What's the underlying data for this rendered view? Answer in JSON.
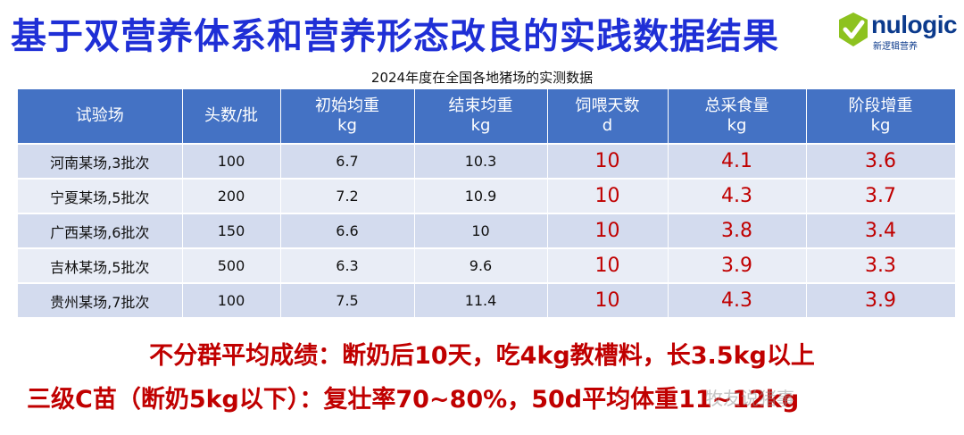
{
  "title": "基于双营养体系和营养形态改良的实践数据结果",
  "logo": {
    "word": "nulogic",
    "sub": "新逻辑营养",
    "mark_colors": [
      "#8dc21f",
      "#1f7a3a"
    ]
  },
  "subtitle": "2024年度在全国各地猪场的实测数据",
  "table": {
    "headers": [
      {
        "line1": "试验场",
        "line2": ""
      },
      {
        "line1": "头数/批",
        "line2": ""
      },
      {
        "line1": "初始均重",
        "line2": "kg"
      },
      {
        "line1": "结束均重",
        "line2": "kg"
      },
      {
        "line1": "饲喂天数",
        "line2": "d"
      },
      {
        "line1": "总采食量",
        "line2": "kg"
      },
      {
        "line1": "阶段增重",
        "line2": "kg"
      }
    ],
    "rows": [
      [
        "河南某场,3批次",
        "100",
        "6.7",
        "10.3",
        "10",
        "4.1",
        "3.6"
      ],
      [
        "宁夏某场,5批次",
        "200",
        "7.2",
        "10.9",
        "10",
        "4.3",
        "3.7"
      ],
      [
        "广西某场,6批次",
        "150",
        "6.6",
        "10",
        "10",
        "3.8",
        "3.4"
      ],
      [
        "吉林某场,5批次",
        "500",
        "6.3",
        "9.6",
        "10",
        "3.9",
        "3.3"
      ],
      [
        "贵州某场,7批次",
        "100",
        "7.5",
        "11.4",
        "10",
        "4.3",
        "3.9"
      ]
    ]
  },
  "notes": {
    "line1": "不分群平均成绩：断奶后10天，吃4kg教槽料，长3.5kg以上",
    "line2": "三级C苗（断奶5kg以下）：复壮率70~80%，50d平均体重11~12kg"
  },
  "watermark": "牧友说猪事",
  "colors": {
    "title": "#1f2fd6",
    "header_bg": "#4472c4",
    "accent_red": "#c00000"
  }
}
